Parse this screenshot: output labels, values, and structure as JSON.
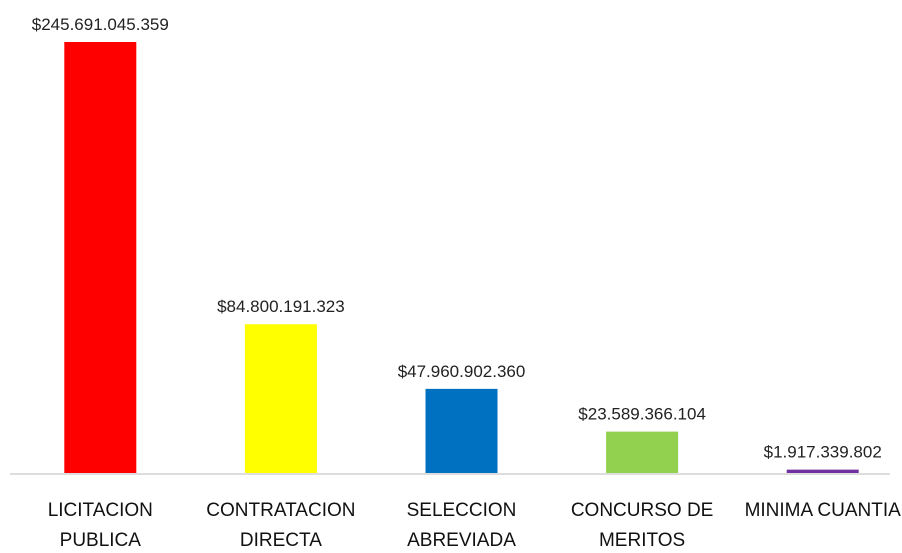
{
  "chart_data": {
    "type": "bar",
    "categories": [
      "LICITACION PUBLICA",
      "CONTRATACION DIRECTA",
      "SELECCION ABREVIADA",
      "CONCURSO DE MERITOS",
      "MINIMA CUANTIA"
    ],
    "values": [
      245691045359,
      84800191323,
      47960902360,
      23589366104,
      1917339802
    ],
    "value_labels": [
      "$245.691.045.359",
      "$84.800.191.323",
      "$47.960.902.360",
      "$23.589.366.104",
      "$1.917.339.802"
    ],
    "colors": [
      "#ff0000",
      "#ffff00",
      "#0070c0",
      "#92d050",
      "#7030a0"
    ]
  }
}
